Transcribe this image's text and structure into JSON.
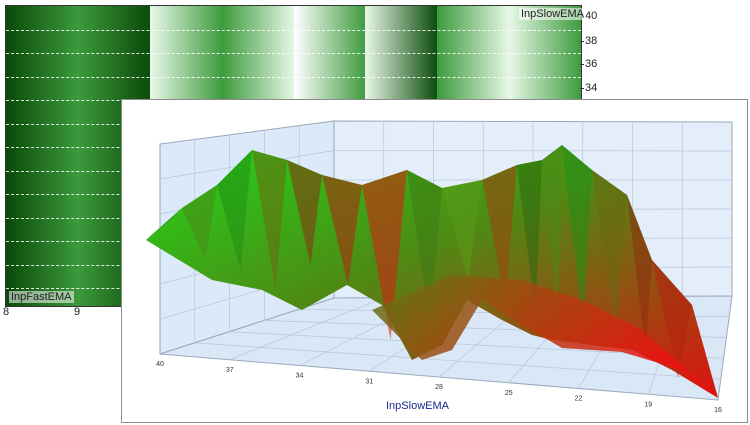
{
  "heatmap": {
    "y_axis_label": "InpSlowEMA",
    "x_axis_label": "InpFastEMA",
    "y_ticks": [
      "40",
      "38",
      "36",
      "34"
    ],
    "x_ticks": [
      "8",
      "9"
    ],
    "colors": {
      "dark": "#0a4a0a",
      "mid": "#3c9a3c",
      "light": "#e8f8e8"
    }
  },
  "surface": {
    "x_axis_title": "InpSlowEMA",
    "x_ticks": [
      "40",
      "37",
      "34",
      "31",
      "28",
      "25",
      "22",
      "19",
      "16"
    ],
    "colors": {
      "high": "#22d81a",
      "low": "#e01010",
      "wall": "#dbe9f8",
      "grid": "#b7c6d8"
    }
  }
}
